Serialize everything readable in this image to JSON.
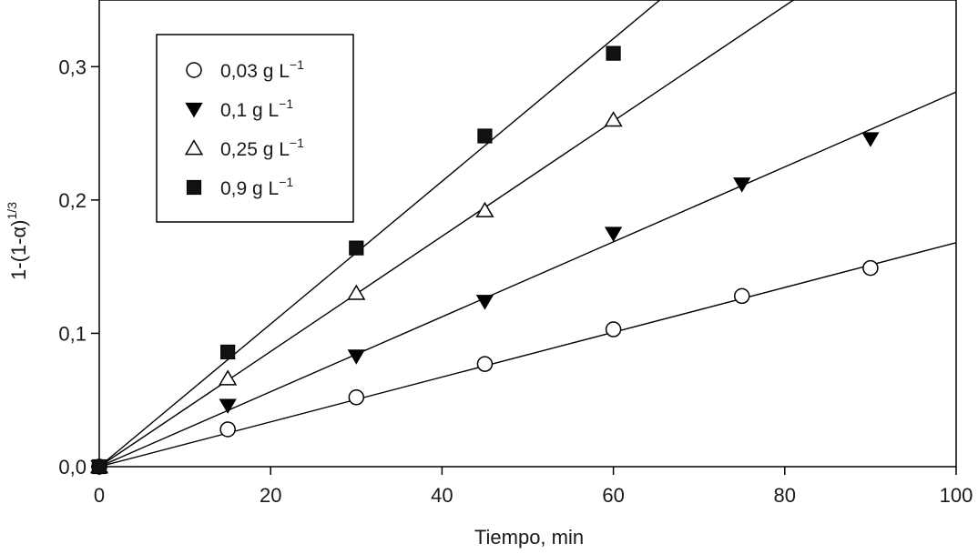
{
  "chart_data": {
    "type": "scatter",
    "xlabel": "Tiempo, min",
    "ylabel_main": "1-(1-α)",
    "ylabel_sup": "1/3",
    "xlim": [
      0,
      100
    ],
    "ylim": [
      0,
      0.35
    ],
    "x_ticks": [
      0,
      20,
      40,
      60,
      80,
      100
    ],
    "x_tick_labels": [
      "0",
      "20",
      "40",
      "60",
      "80",
      "100"
    ],
    "y_ticks": [
      0.0,
      0.1,
      0.2,
      0.3
    ],
    "y_tick_labels": [
      "0,0",
      "0,1",
      "0,2",
      "0,3"
    ],
    "grid": false,
    "legend_position": "upper-left",
    "series": [
      {
        "legend_main": "0,03 g L",
        "legend_sup": "−1",
        "marker": "circle-open",
        "x": [
          0,
          15,
          30,
          45,
          60,
          75,
          90
        ],
        "y": [
          0.0,
          0.028,
          0.052,
          0.077,
          0.103,
          0.128,
          0.149
        ],
        "fit_slope": 0.00168
      },
      {
        "legend_main": "0,1 g L",
        "legend_sup": "−1",
        "marker": "triangle-down-filled",
        "x": [
          0,
          15,
          30,
          45,
          60,
          75,
          90
        ],
        "y": [
          0.0,
          0.046,
          0.083,
          0.124,
          0.175,
          0.212,
          0.246
        ],
        "fit_slope": 0.00281
      },
      {
        "legend_main": "0,25 g L",
        "legend_sup": "−1",
        "marker": "triangle-up-open",
        "x": [
          0,
          15,
          30,
          45,
          60
        ],
        "y": [
          0.0,
          0.066,
          0.13,
          0.192,
          0.26
        ],
        "fit_slope": 0.00432
      },
      {
        "legend_main": "0,9 g L",
        "legend_sup": "−1",
        "marker": "square-filled",
        "x": [
          0,
          15,
          30,
          45,
          60
        ],
        "y": [
          0.0,
          0.086,
          0.164,
          0.248,
          0.31
        ],
        "fit_slope": 0.00535
      }
    ]
  }
}
